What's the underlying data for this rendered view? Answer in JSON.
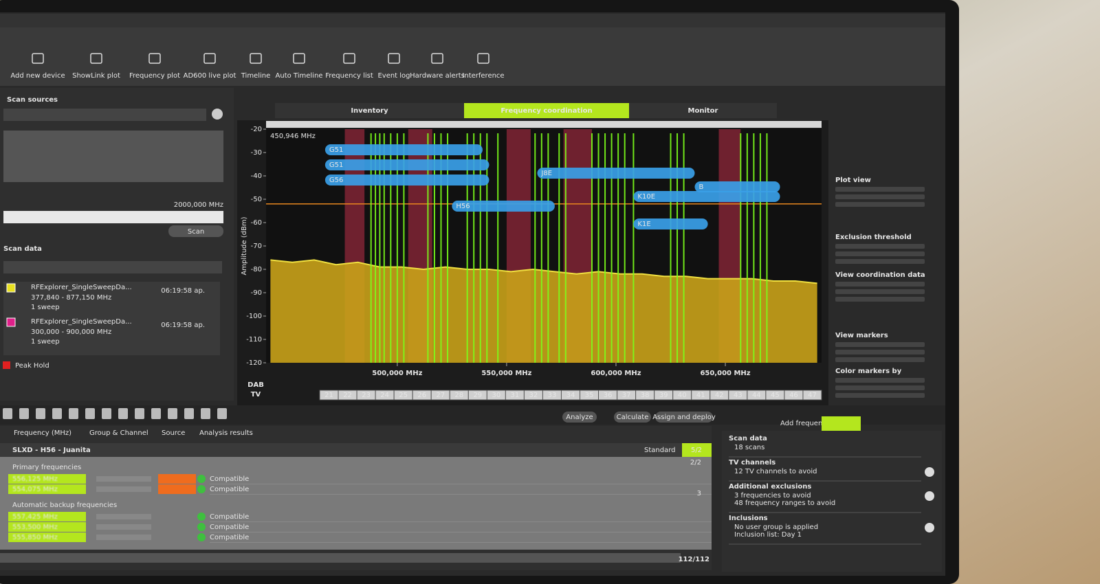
{
  "toolbar": {
    "items": [
      "Add new device",
      "ShowLink plot",
      "Frequency plot",
      "AD600 live plot",
      "Timeline",
      "Auto Timeline",
      "Frequency list",
      "Event log",
      "Hardware alerts",
      "Interference"
    ]
  },
  "tabs": [
    "Inventory",
    "Frequency coordination",
    "Monitor"
  ],
  "scan_sources": {
    "title": "Scan sources",
    "range_end": "2000,000 MHz",
    "button": "Scan"
  },
  "scan_data": {
    "title": "Scan data",
    "items": [
      {
        "name": "RFExplorer_SingleSweepDa...",
        "time": "06:19:58 ap.",
        "range": "377,840 - 877,150 MHz",
        "sweeps": "1 sweep"
      },
      {
        "name": "RFExplorer_SingleSweepDa...",
        "time": "06:19:58 ap.",
        "range": "300,000 - 900,000 MHz",
        "sweeps": "1 sweep"
      }
    ],
    "peak_hold": "Peak Hold"
  },
  "chart_data": {
    "type": "line",
    "y_label": "Amplitude (dBm)",
    "cursor_label": "450,946 MHz",
    "xlim": [
      440,
      694
    ],
    "xticks": [
      {
        "value": 500,
        "label": "500,000 MHz"
      },
      {
        "value": 550,
        "label": "550,000 MHz"
      },
      {
        "value": 600,
        "label": "600,000 MHz"
      },
      {
        "value": 650,
        "label": "650,000 MHz"
      }
    ],
    "ylim": [
      -120,
      -20
    ],
    "yticks": [
      -20,
      -30,
      -40,
      -50,
      -60,
      -70,
      -80,
      -90,
      -100,
      -110,
      -120
    ],
    "x": [
      442,
      452,
      462,
      472,
      482,
      492,
      502,
      512,
      522,
      532,
      542,
      552,
      562,
      572,
      582,
      592,
      602,
      612,
      622,
      632,
      642,
      652,
      662,
      672,
      682,
      692
    ],
    "values": [
      -76,
      -77,
      -76,
      -78,
      -77,
      -79,
      -79,
      -80,
      -79,
      -80,
      -80,
      -81,
      -80,
      -81,
      -82,
      -81,
      -82,
      -82,
      -83,
      -83,
      -84,
      -84,
      -84,
      -85,
      -85,
      -86
    ],
    "color": "#f0e040",
    "fill": "#c9a21a",
    "threshold": -52,
    "threshold_color": "#e8871e",
    "exclusions": [
      [
        476,
        485
      ],
      [
        505,
        516
      ],
      [
        550,
        561
      ],
      [
        576,
        589
      ],
      [
        647,
        657
      ]
    ],
    "exclusion_color": "#7a2333",
    "carriers": [
      488,
      490,
      492,
      494,
      497,
      500,
      503,
      514,
      517,
      520,
      523,
      532,
      535,
      538,
      541,
      546,
      563,
      566,
      569,
      574,
      577,
      589,
      592,
      595,
      598,
      601,
      604,
      608,
      625,
      628,
      631,
      657,
      660,
      663,
      666,
      669
    ],
    "carrier_color": "#7cff1a",
    "coordination": [
      {
        "name": "G51",
        "range": [
          467,
          539
        ]
      },
      {
        "name": "G51",
        "range": [
          467,
          542
        ]
      },
      {
        "name": "G56",
        "range": [
          467,
          542
        ]
      },
      {
        "name": "J8E",
        "range": [
          564,
          636
        ]
      },
      {
        "name": "B",
        "range": [
          636,
          675
        ]
      },
      {
        "name": "K10E",
        "range": [
          608,
          675
        ]
      },
      {
        "name": "H56",
        "range": [
          525,
          572
        ]
      },
      {
        "name": "K1E",
        "range": [
          608,
          642
        ]
      }
    ],
    "coordination_color": "#3a9fe8",
    "band_labels": [
      "DAB",
      "TV"
    ],
    "channels": [
      21,
      22,
      23,
      24,
      25,
      26,
      27,
      28,
      29,
      30,
      31,
      32,
      33,
      34,
      35,
      36,
      37,
      38,
      39,
      40,
      41,
      42,
      43,
      44,
      45,
      46,
      47
    ]
  },
  "plot_panel": {
    "sections": [
      "Plot view",
      "Exclusion threshold",
      "View coordination data",
      "View markers",
      "Color markers by"
    ]
  },
  "actions": [
    "Analyze",
    "Calculate",
    "Assign and deploy"
  ],
  "results": {
    "columns": [
      "Frequency (MHz)",
      "Group & Channel",
      "Source",
      "Analysis results"
    ],
    "group": "SLXD - H56 - Juanita",
    "standard": "Standard",
    "count": "5/2",
    "primary": {
      "title": "Primary frequencies",
      "count": "2/2",
      "rows": [
        {
          "frequency": "556,125 MHz",
          "result": "Compatible"
        },
        {
          "frequency": "554,075 MHz",
          "result": "Compatible"
        }
      ]
    },
    "backup": {
      "title": "Automatic backup frequencies",
      "count": "3",
      "rows": [
        {
          "frequency": "557,425 MHz",
          "result": "Compatible"
        },
        {
          "frequency": "553,500 MHz",
          "result": "Compatible"
        },
        {
          "frequency": "555,850 MHz",
          "result": "Compatible"
        }
      ]
    },
    "total": "112/112"
  },
  "summary": {
    "add": "Add frequencies",
    "sections": [
      {
        "title": "Scan data",
        "lines": [
          "18 scans"
        ]
      },
      {
        "title": "TV channels",
        "lines": [
          "12 TV channels to avoid"
        ]
      },
      {
        "title": "Additional exclusions",
        "lines": [
          "3 frequencies to avoid",
          "48 frequency ranges to avoid"
        ]
      },
      {
        "title": "Inclusions",
        "lines": [
          "No user group is applied",
          "Inclusion list: Day 1"
        ]
      }
    ]
  }
}
